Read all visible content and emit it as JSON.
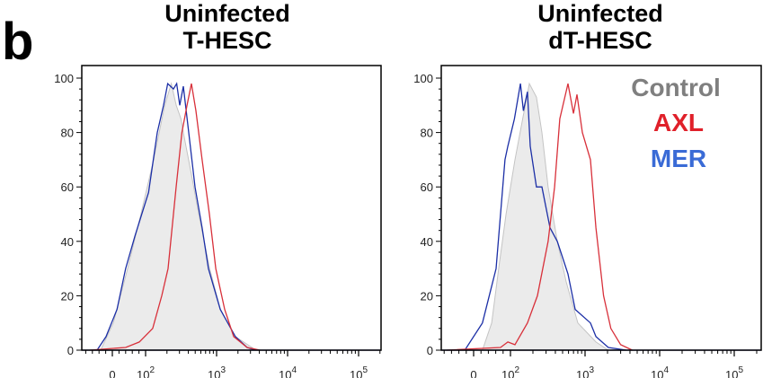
{
  "panel_label": "b",
  "colors": {
    "control_fill": "#ebebeb",
    "control_line": "#c4c4c4",
    "AXL": "#d8303a",
    "MER": "#1c2fa6",
    "legend_control": "#7f7f7f",
    "legend_axl": "#e0202a",
    "legend_mer": "#3a6bd6"
  },
  "legend": {
    "items": [
      {
        "label": "Control"
      },
      {
        "label": "AXL"
      },
      {
        "label": "MER"
      }
    ],
    "placement": "top-right of right panel"
  },
  "chart_data": [
    {
      "type": "area",
      "title_line1": "Uninfected",
      "title_line2": "T-HESC",
      "x_scale": "biexponential (log above 10^2)",
      "y_ticks": [
        "0",
        "20",
        "40",
        "60",
        "80",
        "100"
      ],
      "x_ticks": [
        {
          "value": 0,
          "label": "0"
        },
        {
          "value": 100,
          "label": "10",
          "exp": "2"
        },
        {
          "value": 1000,
          "label": "10",
          "exp": "3"
        },
        {
          "value": 10000,
          "label": "10",
          "exp": "4"
        },
        {
          "value": 100000,
          "label": "10",
          "exp": "5"
        }
      ],
      "ylim": [
        0,
        100
      ],
      "series": [
        {
          "key": "control",
          "x": [
            -35,
            3,
            46,
            86,
            130,
            186,
            230,
            270,
            315,
            340,
            440,
            560,
            800,
            1130,
            1840,
            3600
          ],
          "y": [
            0,
            10,
            30,
            50,
            70,
            90,
            98,
            90,
            85,
            80,
            65,
            50,
            30,
            15,
            5,
            0
          ]
        },
        {
          "key": "MER",
          "x": [
            -46,
            -19,
            14,
            40,
            68,
            110,
            146,
            179,
            205,
            247,
            274,
            303,
            340,
            405,
            497,
            626,
            768,
            1126,
            1840,
            2690,
            3600
          ],
          "y": [
            0,
            5,
            15,
            30,
            42,
            58,
            80,
            90,
            98,
            96,
            98,
            90,
            97,
            80,
            60,
            45,
            30,
            15,
            5,
            1,
            0
          ]
        },
        {
          "key": "AXL",
          "x": [
            -68,
            40,
            81,
            126,
            169,
            207,
            269,
            325,
            383,
            442,
            511,
            626,
            793,
            973,
            1300,
            1740,
            2690,
            4100
          ],
          "y": [
            0,
            1,
            3,
            8,
            20,
            30,
            60,
            80,
            90,
            98,
            88,
            70,
            50,
            30,
            15,
            5,
            1,
            0
          ]
        }
      ]
    },
    {
      "type": "area",
      "title_line1": "Uninfected",
      "title_line2": "dT-HESC",
      "x_scale": "biexponential (log above 10^2)",
      "y_ticks": [
        "0",
        "20",
        "40",
        "60",
        "80",
        "100"
      ],
      "x_ticks": [
        {
          "value": 0,
          "label": "0"
        },
        {
          "value": 100,
          "label": "10",
          "exp": "2"
        },
        {
          "value": 1000,
          "label": "10",
          "exp": "3"
        },
        {
          "value": 10000,
          "label": "10",
          "exp": "4"
        },
        {
          "value": 100000,
          "label": "10",
          "exp": "5"
        }
      ],
      "ylim": [
        0,
        100
      ],
      "series": [
        {
          "key": "control",
          "x": [
            24,
            49,
            68,
            88,
            115,
            146,
            179,
            223,
            264,
            320,
            424,
            560,
            800,
            1400,
            2050
          ],
          "y": [
            0,
            10,
            30,
            50,
            70,
            85,
            98,
            93,
            80,
            60,
            40,
            25,
            10,
            3,
            0
          ]
        },
        {
          "key": "MER",
          "x": [
            -24,
            24,
            61,
            85,
            93,
            113,
            136,
            149,
            169,
            184,
            223,
            264,
            339,
            424,
            590,
            737,
            1180,
            1400,
            2050,
            3580
          ],
          "y": [
            0,
            10,
            30,
            70,
            75,
            85,
            98,
            88,
            95,
            75,
            60,
            60,
            45,
            40,
            28,
            15,
            10,
            5,
            1,
            0
          ]
        },
        {
          "key": "AXL",
          "x": [
            -73,
            73,
            93,
            115,
            169,
            230,
            320,
            390,
            458,
            590,
            700,
            780,
            920,
            1180,
            1400,
            1770,
            2220,
            3000,
            4300
          ],
          "y": [
            0,
            1,
            3,
            2,
            10,
            20,
            40,
            60,
            85,
            98,
            87,
            94,
            80,
            70,
            45,
            20,
            8,
            2,
            0
          ]
        }
      ]
    }
  ]
}
